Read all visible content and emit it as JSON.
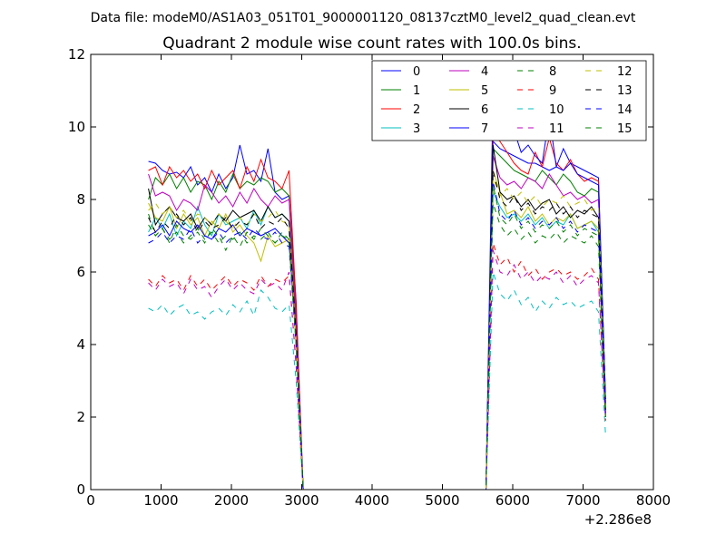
{
  "header": {
    "data_file": "Data file: modeM0/AS1A03_051T01_9000001120_08137cztM0_level2_quad_clean.evt"
  },
  "chart_data": {
    "type": "line",
    "title": "Quadrant 2 module wise count rates with 100.0s bins.",
    "xlabel": "",
    "ylabel": "",
    "xlim": [
      0,
      8000
    ],
    "ylim": [
      0,
      12
    ],
    "xticks": [
      0,
      1000,
      2000,
      3000,
      4000,
      5000,
      6000,
      7000,
      8000
    ],
    "yticks": [
      0,
      2,
      4,
      6,
      8,
      10,
      12
    ],
    "x_offset_label": "+2.286e8",
    "grid": false,
    "legend_position": "top-right",
    "legend_columns": 4,
    "x": [
      820,
      920,
      1020,
      1120,
      1220,
      1320,
      1420,
      1520,
      1620,
      1720,
      1820,
      1920,
      2020,
      2120,
      2220,
      2320,
      2420,
      2520,
      2620,
      2720,
      2820,
      2920,
      3020,
      3120,
      3220,
      3320,
      3420,
      3520,
      3620,
      3720,
      3820,
      3920,
      4020,
      4120,
      4220,
      4320,
      4420,
      4520,
      4620,
      4720,
      4820,
      4920,
      5020,
      5120,
      5220,
      5320,
      5420,
      5520,
      5620,
      5720,
      5820,
      5920,
      6020,
      6120,
      6220,
      6320,
      6420,
      6520,
      6620,
      6720,
      6820,
      6920,
      7020,
      7120,
      7220,
      7320
    ],
    "series": [
      {
        "name": "0",
        "color": "#0000ff",
        "dash": "solid",
        "values": [
          9.05,
          9.0,
          8.8,
          8.7,
          8.75,
          8.6,
          8.9,
          8.4,
          8.6,
          8.2,
          8.7,
          8.3,
          8.6,
          9.5,
          8.7,
          8.8,
          8.5,
          9.4,
          8.2,
          8.0,
          8.1,
          5.2,
          0,
          0,
          0,
          0,
          0,
          0,
          0,
          0,
          0,
          0,
          0,
          0,
          0,
          0,
          0,
          0,
          0,
          0,
          0,
          0,
          0,
          0,
          0,
          0,
          0,
          0,
          0,
          9.6,
          9.4,
          9.3,
          9.2,
          9.1,
          9.0,
          9.0,
          8.9,
          8.8,
          8.9,
          9.4,
          9.0,
          8.9,
          8.8,
          8.7,
          8.6,
          2.5
        ]
      },
      {
        "name": "1",
        "color": "#008000",
        "dash": "solid",
        "values": [
          8.0,
          8.6,
          8.4,
          8.7,
          8.3,
          8.6,
          8.2,
          8.5,
          8.4,
          8.0,
          8.5,
          8.2,
          8.7,
          8.3,
          8.5,
          8.4,
          8.6,
          8.5,
          8.2,
          8.3,
          8.1,
          4.8,
          0,
          0,
          0,
          0,
          0,
          0,
          0,
          0,
          0,
          0,
          0,
          0,
          0,
          0,
          0,
          0,
          0,
          0,
          0,
          0,
          0,
          0,
          0,
          0,
          0,
          0,
          0,
          9.4,
          9.2,
          9.0,
          8.8,
          8.7,
          8.6,
          8.5,
          8.8,
          8.6,
          8.4,
          8.7,
          8.5,
          8.2,
          8.1,
          8.3,
          8.2,
          2.2
        ]
      },
      {
        "name": "2",
        "color": "#ff0000",
        "dash": "solid",
        "values": [
          8.8,
          8.9,
          8.4,
          8.9,
          8.6,
          8.8,
          8.5,
          8.7,
          8.3,
          8.8,
          8.4,
          8.6,
          8.8,
          8.3,
          8.9,
          8.5,
          9.1,
          8.6,
          8.5,
          8.3,
          8.8,
          5.1,
          0,
          0,
          0,
          0,
          0,
          0,
          0,
          0,
          0,
          0,
          0,
          0,
          0,
          0,
          0,
          0,
          0,
          0,
          0,
          0,
          0,
          0,
          0,
          0,
          0,
          0,
          0,
          9.8,
          9.6,
          9.3,
          9.0,
          8.8,
          8.7,
          9.3,
          8.9,
          9.7,
          9.0,
          8.8,
          9.1,
          8.7,
          8.5,
          8.6,
          8.5,
          2.0
        ]
      },
      {
        "name": "3",
        "color": "#00bfbf",
        "dash": "solid",
        "values": [
          7.1,
          7.5,
          7.2,
          7.6,
          7.0,
          7.4,
          7.2,
          7.8,
          7.3,
          7.0,
          7.6,
          7.3,
          7.4,
          7.5,
          7.2,
          7.7,
          7.3,
          7.8,
          7.5,
          7.6,
          7.4,
          4.3,
          0,
          0,
          0,
          0,
          0,
          0,
          0,
          0,
          0,
          0,
          0,
          0,
          0,
          0,
          0,
          0,
          0,
          0,
          0,
          0,
          0,
          0,
          0,
          0,
          0,
          0,
          0,
          8.2,
          7.8,
          7.5,
          7.6,
          7.4,
          7.6,
          7.3,
          7.5,
          7.2,
          7.4,
          7.3,
          7.6,
          7.2,
          7.3,
          7.4,
          7.1,
          2.4
        ]
      },
      {
        "name": "4",
        "color": "#bf00bf",
        "dash": "solid",
        "values": [
          8.7,
          8.1,
          8.2,
          8.1,
          7.7,
          8.0,
          7.9,
          7.7,
          8.4,
          8.2,
          7.9,
          8.1,
          7.8,
          8.2,
          7.9,
          8.3,
          8.0,
          7.8,
          8.1,
          7.9,
          8.0,
          4.6,
          0,
          0,
          0,
          0,
          0,
          0,
          0,
          0,
          0,
          0,
          0,
          0,
          0,
          0,
          0,
          0,
          0,
          0,
          0,
          0,
          0,
          0,
          0,
          0,
          0,
          0,
          0,
          9.2,
          8.6,
          8.4,
          8.5,
          8.3,
          8.6,
          8.5,
          8.3,
          8.7,
          8.4,
          8.1,
          8.2,
          8.0,
          8.1,
          7.9,
          8.0,
          2.3
        ]
      },
      {
        "name": "5",
        "color": "#bfbf00",
        "dash": "solid",
        "values": [
          7.9,
          7.5,
          7.4,
          7.8,
          7.2,
          7.6,
          7.3,
          7.5,
          7.0,
          7.4,
          7.2,
          7.6,
          7.1,
          7.3,
          7.0,
          6.8,
          6.3,
          7.0,
          6.7,
          6.8,
          6.9,
          4.0,
          0,
          0,
          0,
          0,
          0,
          0,
          0,
          0,
          0,
          0,
          0,
          0,
          0,
          0,
          0,
          0,
          0,
          0,
          0,
          0,
          0,
          0,
          0,
          0,
          0,
          0,
          0,
          8.8,
          8.2,
          7.6,
          7.7,
          7.5,
          7.8,
          7.4,
          7.6,
          7.3,
          7.5,
          7.4,
          7.6,
          7.2,
          7.3,
          7.4,
          7.2,
          2.2
        ]
      },
      {
        "name": "6",
        "color": "#000000",
        "dash": "solid",
        "values": [
          8.3,
          7.3,
          7.6,
          7.8,
          7.5,
          7.4,
          7.6,
          7.2,
          7.5,
          7.3,
          7.6,
          7.4,
          7.7,
          7.5,
          7.6,
          7.7,
          7.4,
          7.8,
          7.5,
          7.6,
          7.4,
          4.3,
          0,
          0,
          0,
          0,
          0,
          0,
          0,
          0,
          0,
          0,
          0,
          0,
          0,
          0,
          0,
          0,
          0,
          0,
          0,
          0,
          0,
          0,
          0,
          0,
          0,
          0,
          0,
          9.5,
          8.2,
          8.0,
          8.1,
          7.8,
          8.0,
          7.7,
          7.9,
          8.0,
          7.6,
          7.8,
          7.5,
          7.7,
          7.6,
          7.8,
          7.5,
          2.3
        ]
      },
      {
        "name": "7",
        "color": "#0000ff",
        "dash": "solid",
        "values": [
          7.0,
          7.1,
          7.3,
          7.0,
          7.4,
          7.2,
          7.1,
          7.3,
          7.0,
          6.9,
          7.2,
          7.1,
          7.3,
          7.0,
          7.2,
          7.1,
          7.0,
          7.1,
          7.2,
          7.0,
          6.8,
          4.2,
          0,
          0,
          0,
          0,
          0,
          0,
          0,
          0,
          0,
          0,
          0,
          0,
          0,
          0,
          0,
          0,
          0,
          0,
          0,
          0,
          0,
          0,
          0,
          0,
          0,
          0,
          0,
          10.9,
          10.1,
          10.2,
          9.9,
          9.3,
          9.5,
          9.2,
          9.0,
          10.3,
          8.9,
          8.8,
          9.0,
          8.7,
          8.6,
          8.5,
          8.4,
          2.5
        ]
      },
      {
        "name": "8",
        "color": "#008000",
        "dash": "dashed",
        "values": [
          7.6,
          7.0,
          7.2,
          6.8,
          7.3,
          7.0,
          6.9,
          7.1,
          6.8,
          7.2,
          7.0,
          6.6,
          7.0,
          6.7,
          7.1,
          6.9,
          7.2,
          7.0,
          6.8,
          7.1,
          6.9,
          4.1,
          0,
          0,
          0,
          0,
          0,
          0,
          0,
          0,
          0,
          0,
          0,
          0,
          0,
          0,
          0,
          0,
          0,
          0,
          0,
          0,
          0,
          0,
          0,
          0,
          0,
          0,
          0,
          7.9,
          7.3,
          7.0,
          7.2,
          6.9,
          7.1,
          6.8,
          7.0,
          6.9,
          7.1,
          6.8,
          7.0,
          6.9,
          6.8,
          7.0,
          6.7,
          2.0
        ]
      },
      {
        "name": "9",
        "color": "#ff0000",
        "dash": "dashed",
        "values": [
          5.8,
          5.6,
          5.9,
          5.7,
          5.8,
          5.5,
          5.9,
          5.6,
          5.8,
          5.5,
          5.7,
          5.9,
          5.6,
          5.8,
          5.7,
          5.5,
          5.9,
          5.6,
          5.8,
          5.7,
          5.9,
          3.5,
          0,
          0,
          0,
          0,
          0,
          0,
          0,
          0,
          0,
          0,
          0,
          0,
          0,
          0,
          0,
          0,
          0,
          0,
          0,
          0,
          0,
          0,
          0,
          0,
          0,
          0,
          0,
          6.8,
          6.2,
          6.4,
          6.0,
          6.3,
          5.9,
          6.1,
          5.8,
          6.0,
          6.1,
          5.9,
          6.0,
          5.8,
          5.9,
          6.1,
          5.8,
          1.9
        ]
      },
      {
        "name": "10",
        "color": "#00bfbf",
        "dash": "dashed",
        "values": [
          5.0,
          4.9,
          5.1,
          4.8,
          5.0,
          5.1,
          4.8,
          4.9,
          4.7,
          4.9,
          5.0,
          4.8,
          5.1,
          4.9,
          5.2,
          4.8,
          5.5,
          5.3,
          5.0,
          4.9,
          5.1,
          3.0,
          0,
          0,
          0,
          0,
          0,
          0,
          0,
          0,
          0,
          0,
          0,
          0,
          0,
          0,
          0,
          0,
          0,
          0,
          0,
          0,
          0,
          0,
          0,
          0,
          0,
          0,
          0,
          6.0,
          5.4,
          5.2,
          5.5,
          5.1,
          5.3,
          4.9,
          5.2,
          5.0,
          5.3,
          5.1,
          5.2,
          5.0,
          5.1,
          5.2,
          4.9,
          1.5
        ]
      },
      {
        "name": "11",
        "color": "#bf00bf",
        "dash": "dashed",
        "values": [
          5.7,
          5.5,
          5.8,
          5.6,
          5.7,
          5.4,
          5.8,
          5.5,
          5.6,
          5.3,
          5.6,
          5.8,
          5.5,
          5.7,
          5.5,
          5.4,
          5.8,
          5.6,
          5.7,
          5.5,
          6.0,
          3.4,
          0,
          0,
          0,
          0,
          0,
          0,
          0,
          0,
          0,
          0,
          0,
          0,
          0,
          0,
          0,
          0,
          0,
          0,
          0,
          0,
          0,
          0,
          0,
          0,
          0,
          0,
          0,
          6.6,
          6.0,
          5.9,
          6.2,
          5.8,
          6.0,
          5.7,
          5.9,
          5.8,
          6.0,
          5.7,
          5.9,
          5.6,
          5.8,
          5.9,
          5.7,
          1.9
        ]
      },
      {
        "name": "12",
        "color": "#bfbf00",
        "dash": "dashed",
        "values": [
          7.7,
          7.9,
          7.6,
          7.8,
          7.5,
          7.7,
          7.4,
          7.6,
          7.5,
          7.3,
          7.6,
          7.4,
          7.2,
          7.5,
          7.3,
          7.6,
          7.4,
          7.5,
          7.7,
          7.4,
          7.3,
          4.2,
          0,
          0,
          0,
          0,
          0,
          0,
          0,
          0,
          0,
          0,
          0,
          0,
          0,
          0,
          0,
          0,
          0,
          0,
          0,
          0,
          0,
          0,
          0,
          0,
          0,
          0,
          0,
          8.6,
          8.1,
          8.3,
          8.0,
          8.2,
          7.9,
          8.1,
          7.8,
          8.0,
          7.9,
          8.1,
          7.8,
          7.9,
          8.0,
          7.7,
          7.8,
          2.3
        ]
      },
      {
        "name": "13",
        "color": "#000000",
        "dash": "dashed",
        "values": [
          7.5,
          7.1,
          7.4,
          7.2,
          7.6,
          7.3,
          7.5,
          7.1,
          7.4,
          7.2,
          7.3,
          7.5,
          7.2,
          7.4,
          7.3,
          7.6,
          7.2,
          7.4,
          7.3,
          7.5,
          7.2,
          4.2,
          0,
          0,
          0,
          0,
          0,
          0,
          0,
          0,
          0,
          0,
          0,
          0,
          0,
          0,
          0,
          0,
          0,
          0,
          0,
          0,
          0,
          0,
          0,
          0,
          0,
          0,
          0,
          8.8,
          8.0,
          7.8,
          8.1,
          7.7,
          7.9,
          7.6,
          7.8,
          7.7,
          7.9,
          7.6,
          7.8,
          7.5,
          7.7,
          7.6,
          7.5,
          2.2
        ]
      },
      {
        "name": "14",
        "color": "#0000ff",
        "dash": "dashed",
        "values": [
          6.8,
          6.9,
          7.1,
          6.8,
          7.0,
          6.9,
          7.2,
          6.8,
          7.0,
          6.9,
          7.1,
          6.8,
          7.0,
          7.1,
          6.9,
          7.2,
          7.0,
          6.9,
          7.1,
          6.8,
          6.7,
          4.0,
          0,
          0,
          0,
          0,
          0,
          0,
          0,
          0,
          0,
          0,
          0,
          0,
          0,
          0,
          0,
          0,
          0,
          0,
          0,
          0,
          0,
          0,
          0,
          0,
          0,
          0,
          0,
          8.5,
          7.6,
          7.4,
          7.7,
          7.3,
          7.5,
          7.2,
          7.4,
          7.3,
          7.5,
          7.2,
          7.4,
          7.1,
          7.3,
          7.2,
          7.1,
          2.1
        ]
      },
      {
        "name": "15",
        "color": "#008000",
        "dash": "dashed",
        "values": [
          7.3,
          7.0,
          7.2,
          6.9,
          7.1,
          6.8,
          7.0,
          7.2,
          6.9,
          7.1,
          6.8,
          7.0,
          6.9,
          7.1,
          6.8,
          7.0,
          6.9,
          7.1,
          6.8,
          7.0,
          6.9,
          4.0,
          0,
          0,
          0,
          0,
          0,
          0,
          0,
          0,
          0,
          0,
          0,
          0,
          0,
          0,
          0,
          0,
          0,
          0,
          0,
          0,
          0,
          0,
          0,
          0,
          0,
          0,
          0,
          8.4,
          7.5,
          7.3,
          7.6,
          7.2,
          7.4,
          7.1,
          7.3,
          7.2,
          7.4,
          7.1,
          7.3,
          7.0,
          7.2,
          7.1,
          7.0,
          2.0
        ]
      }
    ]
  }
}
